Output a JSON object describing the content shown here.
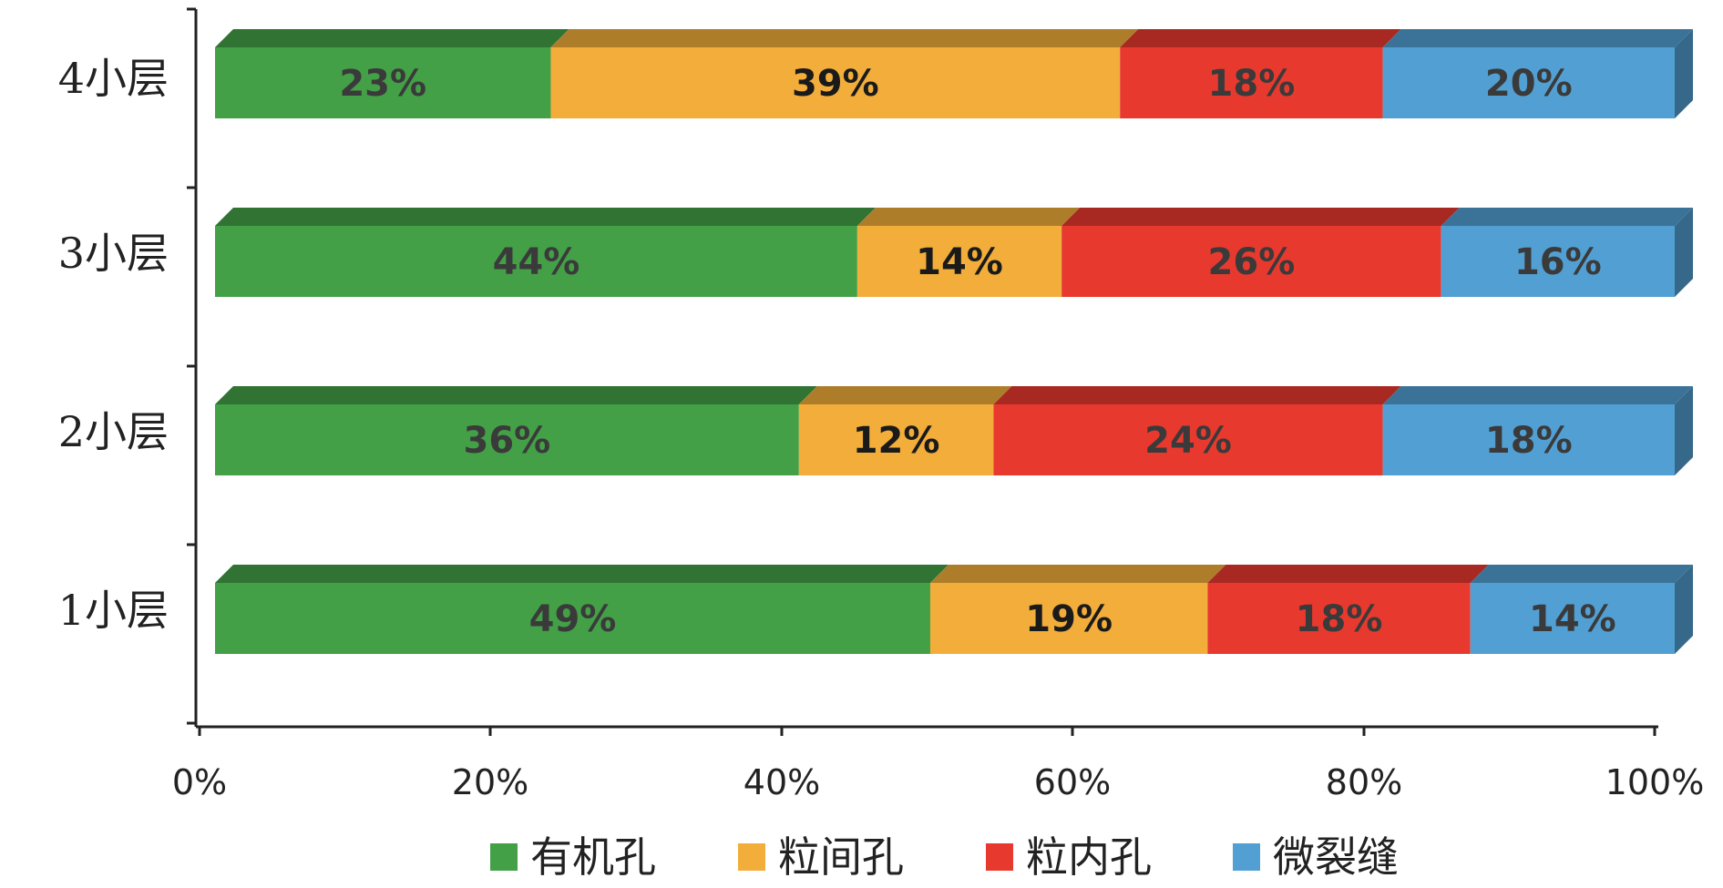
{
  "chart_data": {
    "type": "bar",
    "orientation": "horizontal",
    "stacking": "percent",
    "style": "3d",
    "categories": [
      "1小层",
      "2小层",
      "3小层",
      "4小层"
    ],
    "series": [
      {
        "name": "有机孔",
        "values": [
          49,
          36,
          44,
          23
        ],
        "color": "#43a047"
      },
      {
        "name": "粒间孔",
        "values": [
          19,
          12,
          14,
          39
        ],
        "color": "#f2ad3a"
      },
      {
        "name": "粒内孔",
        "values": [
          18,
          24,
          26,
          18
        ],
        "color": "#e8392e"
      },
      {
        "name": "微裂缝",
        "values": [
          14,
          18,
          16,
          20
        ],
        "color": "#52a0d3"
      }
    ],
    "data_labels": [
      [
        "49%",
        "36%",
        "44%",
        "23%"
      ],
      [
        "19%",
        "12%",
        "14%",
        "39%"
      ],
      [
        "18%",
        "24%",
        "26%",
        "18%"
      ],
      [
        "14%",
        "18%",
        "16%",
        "20%"
      ]
    ],
    "xlim": [
      0,
      100
    ],
    "xticks": [
      "0%",
      "20%",
      "40%",
      "60%",
      "80%",
      "100%"
    ],
    "grid": false,
    "legend_position": "bottom"
  }
}
